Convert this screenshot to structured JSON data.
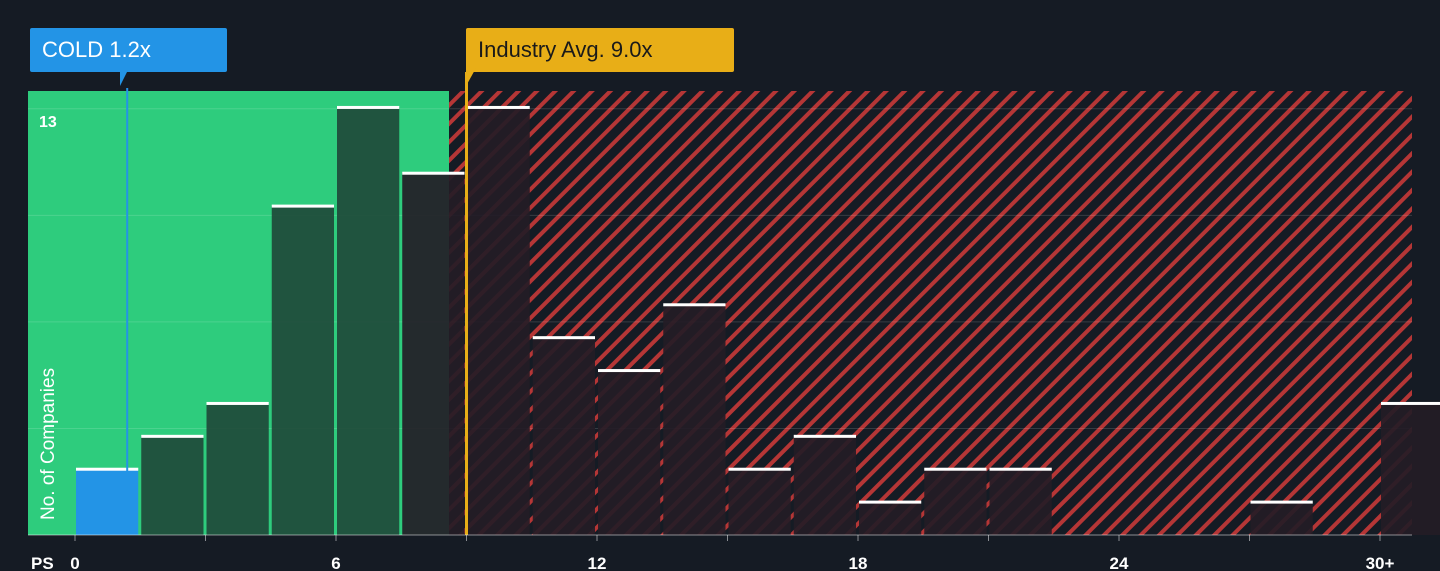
{
  "company_label": "COLD 1.2x",
  "industry_label": "Industry Avg. 9.0x",
  "colors": {
    "background": "#151b24",
    "fair_zone": "#2ecc7d",
    "over_zone_stripe": "#c23b3b",
    "company": "#2394e6",
    "industry": "#e8ae17",
    "bar_in_fair": "#1f4a3a",
    "bar_in_over": "#241c26",
    "bar_top": "#ffffff"
  },
  "chart_data": {
    "type": "bar",
    "xlabel": "PS",
    "ylabel": "No. of Companies",
    "x_ticks": [
      "0",
      "6",
      "12",
      "18",
      "24",
      "30+"
    ],
    "y_tick_label": "13",
    "bin_width": 1.5,
    "xlim": [
      0,
      30.75
    ],
    "ylim": [
      0,
      13.5
    ],
    "company_value": 1.2,
    "industry_avg": 9.0,
    "bins": [
      {
        "x": 0,
        "count": 2
      },
      {
        "x": 1.5,
        "count": 3
      },
      {
        "x": 3,
        "count": 4
      },
      {
        "x": 4.5,
        "count": 10
      },
      {
        "x": 6,
        "count": 13
      },
      {
        "x": 7.5,
        "count": 11
      },
      {
        "x": 9,
        "count": 13
      },
      {
        "x": 10.5,
        "count": 6
      },
      {
        "x": 12,
        "count": 5
      },
      {
        "x": 13.5,
        "count": 7
      },
      {
        "x": 15,
        "count": 2
      },
      {
        "x": 16.5,
        "count": 3
      },
      {
        "x": 18,
        "count": 1
      },
      {
        "x": 19.5,
        "count": 2
      },
      {
        "x": 21,
        "count": 2
      },
      {
        "x": 22.5,
        "count": 0
      },
      {
        "x": 24,
        "count": 0
      },
      {
        "x": 25.5,
        "count": 0
      },
      {
        "x": 27,
        "count": 1
      },
      {
        "x": 28.5,
        "count": 0
      },
      {
        "x": 30,
        "count": 4
      }
    ]
  }
}
